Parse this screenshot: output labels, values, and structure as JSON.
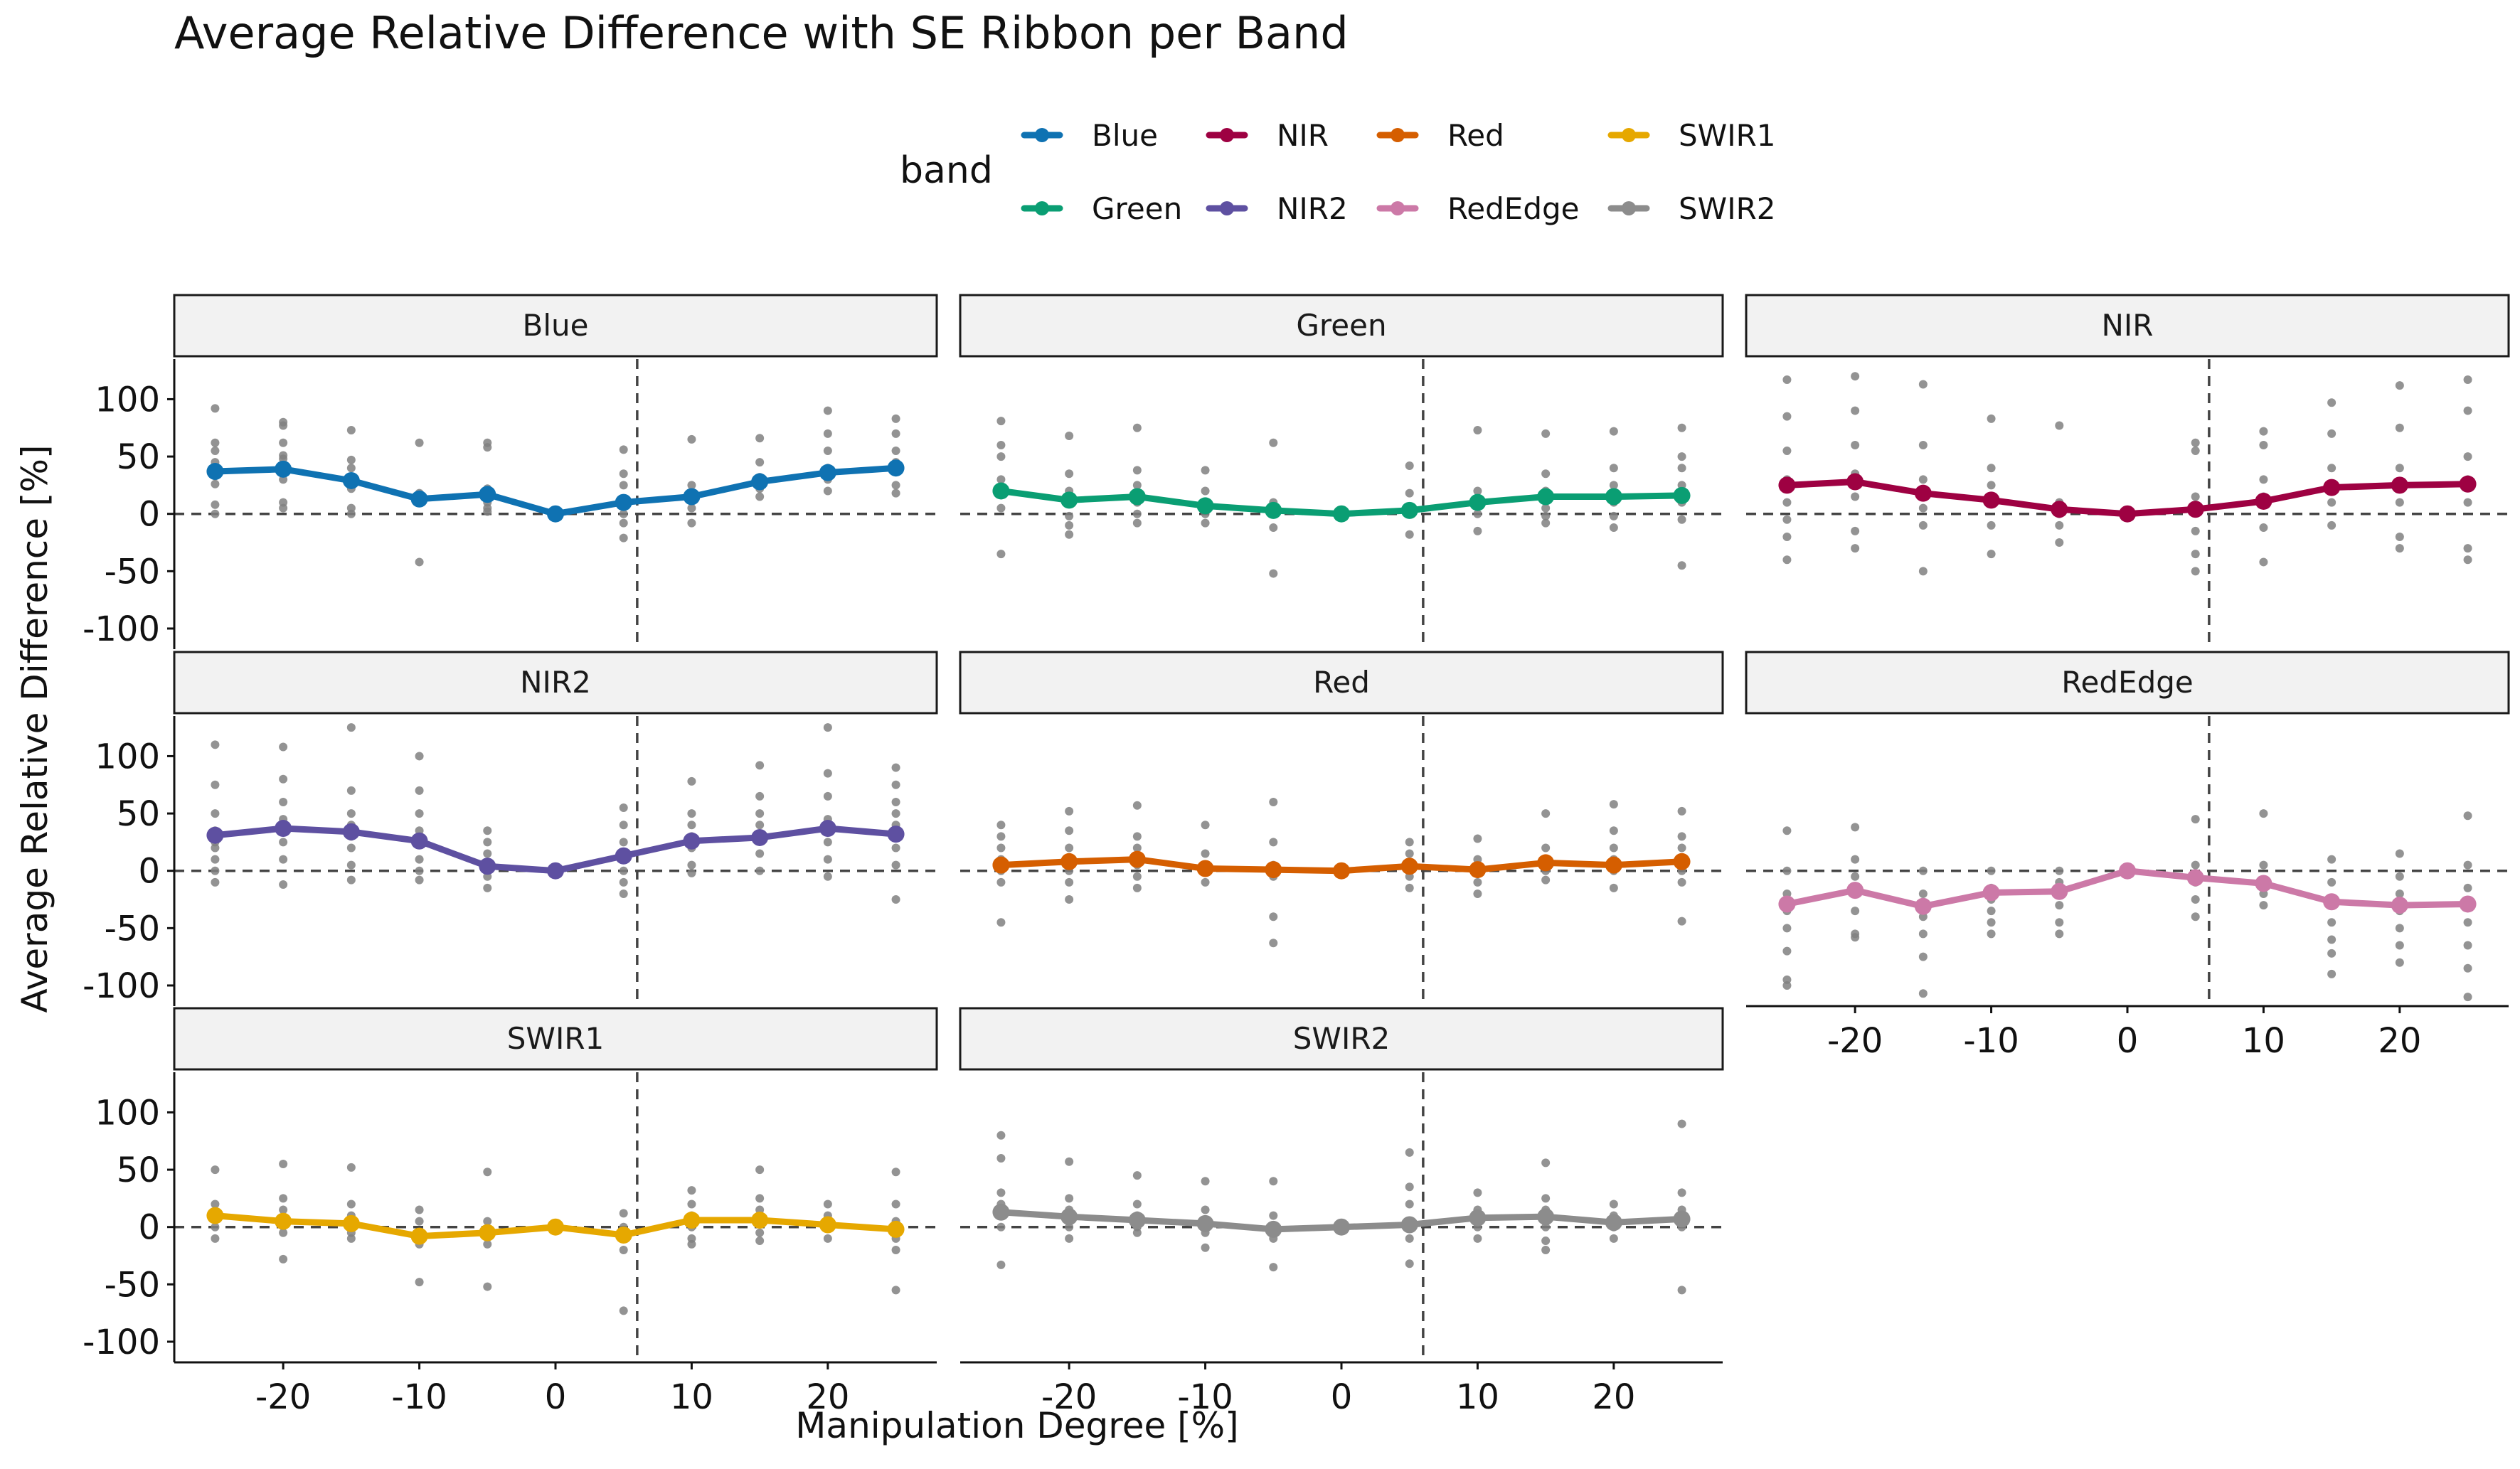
{
  "chart_data": {
    "type": "line",
    "title": "Average Relative Difference with SE Ribbon per Band",
    "xlabel": "Manipulation Degree [%]",
    "ylabel": "Average Relative Difference [%]",
    "legend": {
      "title": "band",
      "placement": "top",
      "entries": [
        "Blue",
        "NIR",
        "Red",
        "SWIR1",
        "Green",
        "NIR2",
        "RedEdge",
        "SWIR2"
      ]
    },
    "x": [
      -25,
      -20,
      -15,
      -10,
      -5,
      0,
      5,
      10,
      15,
      20,
      25
    ],
    "xticks": [
      -20,
      -10,
      0,
      10,
      20
    ],
    "xlim": [
      -28,
      28
    ],
    "yticks": [
      100,
      50,
      0,
      -50,
      -100
    ],
    "ylim": [
      -118,
      135
    ],
    "reference_lines": {
      "horizontal_y": 0,
      "vertical_x": 6
    },
    "series": [
      {
        "name": "Blue",
        "color": "#0F72B2",
        "values": [
          37,
          39,
          29,
          13,
          17,
          0,
          10,
          15,
          28,
          36,
          40
        ]
      },
      {
        "name": "Green",
        "color": "#0A9E73",
        "values": [
          20,
          12,
          15,
          7,
          3,
          0,
          3,
          10,
          15,
          15,
          16
        ]
      },
      {
        "name": "NIR",
        "color": "#9E0142",
        "values": [
          25,
          28,
          18,
          12,
          4,
          0,
          4,
          11,
          23,
          25,
          26
        ]
      },
      {
        "name": "NIR2",
        "color": "#5E50A1",
        "values": [
          31,
          37,
          34,
          26,
          4,
          0,
          13,
          26,
          29,
          37,
          32
        ]
      },
      {
        "name": "Red",
        "color": "#D55E00",
        "values": [
          5,
          8,
          10,
          2,
          1,
          0,
          4,
          1,
          7,
          5,
          8
        ]
      },
      {
        "name": "RedEdge",
        "color": "#CC79A7",
        "values": [
          -29,
          -17,
          -31,
          -19,
          -18,
          0,
          -6,
          -11,
          -27,
          -30,
          -29
        ]
      },
      {
        "name": "SWIR1",
        "color": "#E6A800",
        "values": [
          10,
          5,
          3,
          -8,
          -5,
          0,
          -7,
          6,
          6,
          2,
          -2
        ]
      },
      {
        "name": "SWIR2",
        "color": "#8C8C8C",
        "values": [
          13,
          9,
          6,
          3,
          -2,
          0,
          2,
          8,
          9,
          4,
          7
        ]
      }
    ],
    "points_color": "#808080",
    "scatter": {
      "Blue": [
        [
          -25,
          [
            92,
            62,
            55,
            45,
            33,
            26,
            8,
            0
          ]
        ],
        [
          -20,
          [
            80,
            77,
            62,
            51,
            48,
            42,
            30,
            10,
            5
          ]
        ],
        [
          -15,
          [
            73,
            47,
            40,
            32,
            22,
            5,
            0
          ]
        ],
        [
          -10,
          [
            62,
            18,
            10,
            -42
          ]
        ],
        [
          -5,
          [
            62,
            58,
            22,
            10,
            5,
            2
          ]
        ],
        [
          0,
          [
            1,
            0
          ]
        ],
        [
          5,
          [
            56,
            35,
            25,
            10,
            0,
            -8,
            -21
          ]
        ],
        [
          10,
          [
            65,
            25,
            15,
            5,
            -8
          ]
        ],
        [
          15,
          [
            66,
            45,
            32,
            22,
            15
          ]
        ],
        [
          20,
          [
            90,
            70,
            55,
            40,
            30,
            20
          ]
        ],
        [
          25,
          [
            83,
            70,
            55,
            45,
            38,
            25,
            18
          ]
        ]
      ],
      "Green": [
        [
          -25,
          [
            81,
            60,
            50,
            30,
            18,
            5,
            -35
          ]
        ],
        [
          -20,
          [
            68,
            35,
            20,
            10,
            -2,
            -10,
            -18
          ]
        ],
        [
          -15,
          [
            75,
            38,
            25,
            10,
            0,
            -8
          ]
        ],
        [
          -10,
          [
            38,
            20,
            8,
            0,
            -8
          ]
        ],
        [
          -5,
          [
            62,
            10,
            0,
            -12,
            -52
          ]
        ],
        [
          0,
          [
            1,
            0
          ]
        ],
        [
          5,
          [
            42,
            18,
            5,
            0,
            -18
          ]
        ],
        [
          10,
          [
            73,
            20,
            10,
            0,
            -15
          ]
        ],
        [
          15,
          [
            70,
            35,
            20,
            5,
            -2,
            -8
          ]
        ],
        [
          20,
          [
            72,
            40,
            25,
            10,
            -2,
            -12
          ]
        ],
        [
          25,
          [
            75,
            50,
            40,
            25,
            10,
            -5,
            -45
          ]
        ]
      ],
      "NIR": [
        [
          -25,
          [
            117,
            85,
            55,
            30,
            10,
            -5,
            -20,
            -40
          ]
        ],
        [
          -20,
          [
            120,
            90,
            60,
            35,
            15,
            -15,
            -30
          ]
        ],
        [
          -15,
          [
            113,
            60,
            30,
            5,
            -10,
            -50
          ]
        ],
        [
          -10,
          [
            83,
            40,
            25,
            10,
            -10,
            -35
          ]
        ],
        [
          -5,
          [
            77,
            10,
            0,
            -10,
            -25
          ]
        ],
        [
          0,
          [
            1,
            0
          ]
        ],
        [
          5,
          [
            62,
            55,
            15,
            5,
            -15,
            -35,
            -50
          ]
        ],
        [
          10,
          [
            72,
            60,
            30,
            15,
            -12,
            -42
          ]
        ],
        [
          15,
          [
            97,
            70,
            40,
            25,
            10,
            -10
          ]
        ],
        [
          20,
          [
            112,
            75,
            40,
            25,
            10,
            -20,
            -30
          ]
        ],
        [
          25,
          [
            117,
            90,
            50,
            30,
            10,
            -30,
            -40
          ]
        ]
      ],
      "NIR2": [
        [
          -25,
          [
            110,
            75,
            50,
            35,
            25,
            20,
            10,
            0,
            -10
          ]
        ],
        [
          -20,
          [
            108,
            80,
            60,
            45,
            35,
            25,
            10,
            -12
          ]
        ],
        [
          -15,
          [
            125,
            70,
            50,
            40,
            30,
            20,
            5,
            -8
          ]
        ],
        [
          -10,
          [
            100,
            70,
            50,
            35,
            25,
            10,
            0,
            -8
          ]
        ],
        [
          -5,
          [
            35,
            25,
            15,
            5,
            -5,
            -15
          ]
        ],
        [
          0,
          [
            1,
            0
          ]
        ],
        [
          5,
          [
            55,
            40,
            25,
            10,
            0,
            -10,
            -20
          ]
        ],
        [
          10,
          [
            78,
            50,
            40,
            30,
            20,
            5,
            -2
          ]
        ],
        [
          15,
          [
            92,
            65,
            50,
            40,
            30,
            15,
            0
          ]
        ],
        [
          20,
          [
            125,
            85,
            65,
            45,
            25,
            10,
            -5
          ]
        ],
        [
          25,
          [
            90,
            75,
            60,
            50,
            40,
            20,
            5,
            -25
          ]
        ]
      ],
      "Red": [
        [
          -25,
          [
            40,
            30,
            20,
            10,
            0,
            -10,
            -45
          ]
        ],
        [
          -20,
          [
            52,
            35,
            20,
            10,
            0,
            -10,
            -25
          ]
        ],
        [
          -15,
          [
            57,
            30,
            20,
            10,
            5,
            -5,
            -15
          ]
        ],
        [
          -10,
          [
            40,
            15,
            5,
            0,
            -10
          ]
        ],
        [
          -5,
          [
            60,
            25,
            5,
            -5,
            -40,
            -63
          ]
        ],
        [
          0,
          [
            1,
            0
          ]
        ],
        [
          5,
          [
            25,
            15,
            5,
            -5,
            -15
          ]
        ],
        [
          10,
          [
            28,
            10,
            0,
            -10,
            -20
          ]
        ],
        [
          15,
          [
            50,
            20,
            10,
            0,
            -8
          ]
        ],
        [
          20,
          [
            58,
            35,
            20,
            10,
            0,
            -15
          ]
        ],
        [
          25,
          [
            52,
            30,
            20,
            10,
            0,
            -10,
            -44
          ]
        ]
      ],
      "RedEdge": [
        [
          -25,
          [
            35,
            0,
            -20,
            -35,
            -50,
            -70,
            -95,
            -100
          ]
        ],
        [
          -20,
          [
            38,
            10,
            -5,
            -20,
            -35,
            -55,
            -58
          ]
        ],
        [
          -15,
          [
            0,
            -20,
            -30,
            -40,
            -55,
            -75,
            -107
          ]
        ],
        [
          -10,
          [
            0,
            -15,
            -25,
            -35,
            -45,
            -55
          ]
        ],
        [
          -5,
          [
            0,
            -10,
            -20,
            -30,
            -45,
            -55
          ]
        ],
        [
          0,
          [
            1,
            0
          ]
        ],
        [
          5,
          [
            45,
            5,
            -10,
            -25,
            -40
          ]
        ],
        [
          10,
          [
            50,
            5,
            -10,
            -20,
            -30
          ]
        ],
        [
          15,
          [
            10,
            -10,
            -30,
            -45,
            -60,
            -72,
            -90
          ]
        ],
        [
          20,
          [
            15,
            -5,
            -20,
            -35,
            -50,
            -65,
            -80
          ]
        ],
        [
          25,
          [
            48,
            5,
            -15,
            -30,
            -45,
            -65,
            -85,
            -110
          ]
        ]
      ],
      "SWIR1": [
        [
          -25,
          [
            50,
            20,
            10,
            0,
            -10
          ]
        ],
        [
          -20,
          [
            55,
            25,
            15,
            5,
            -5,
            -28
          ]
        ],
        [
          -15,
          [
            52,
            20,
            10,
            0,
            -5,
            -10
          ]
        ],
        [
          -10,
          [
            15,
            5,
            -5,
            -15,
            -48
          ]
        ],
        [
          -5,
          [
            48,
            5,
            -5,
            -15,
            -52
          ]
        ],
        [
          0,
          [
            1,
            0
          ]
        ],
        [
          5,
          [
            12,
            0,
            -10,
            -20,
            -73
          ]
        ],
        [
          10,
          [
            32,
            20,
            10,
            0,
            -10,
            -15
          ]
        ],
        [
          15,
          [
            50,
            25,
            15,
            5,
            -5,
            -12
          ]
        ],
        [
          20,
          [
            20,
            10,
            0,
            -10
          ]
        ],
        [
          25,
          [
            48,
            20,
            5,
            -10,
            -20,
            -55
          ]
        ]
      ],
      "SWIR2": [
        [
          -25,
          [
            80,
            60,
            30,
            20,
            10,
            0,
            -33
          ]
        ],
        [
          -20,
          [
            57,
            25,
            15,
            5,
            0,
            -10
          ]
        ],
        [
          -15,
          [
            45,
            20,
            10,
            0,
            -5
          ]
        ],
        [
          -10,
          [
            40,
            15,
            5,
            -5,
            -18
          ]
        ],
        [
          -5,
          [
            40,
            10,
            0,
            -10,
            -35
          ]
        ],
        [
          0,
          [
            1,
            0
          ]
        ],
        [
          5,
          [
            65,
            35,
            20,
            5,
            -10,
            -32
          ]
        ],
        [
          10,
          [
            30,
            15,
            5,
            0,
            -10
          ]
        ],
        [
          15,
          [
            56,
            25,
            15,
            5,
            0,
            -12,
            -20
          ]
        ],
        [
          20,
          [
            20,
            10,
            0,
            -10
          ]
        ],
        [
          25,
          [
            90,
            30,
            15,
            5,
            0,
            -55
          ]
        ]
      ]
    },
    "facets": [
      "Blue",
      "Green",
      "NIR",
      "NIR2",
      "Red",
      "RedEdge",
      "SWIR1",
      "SWIR2"
    ],
    "grid": false
  }
}
